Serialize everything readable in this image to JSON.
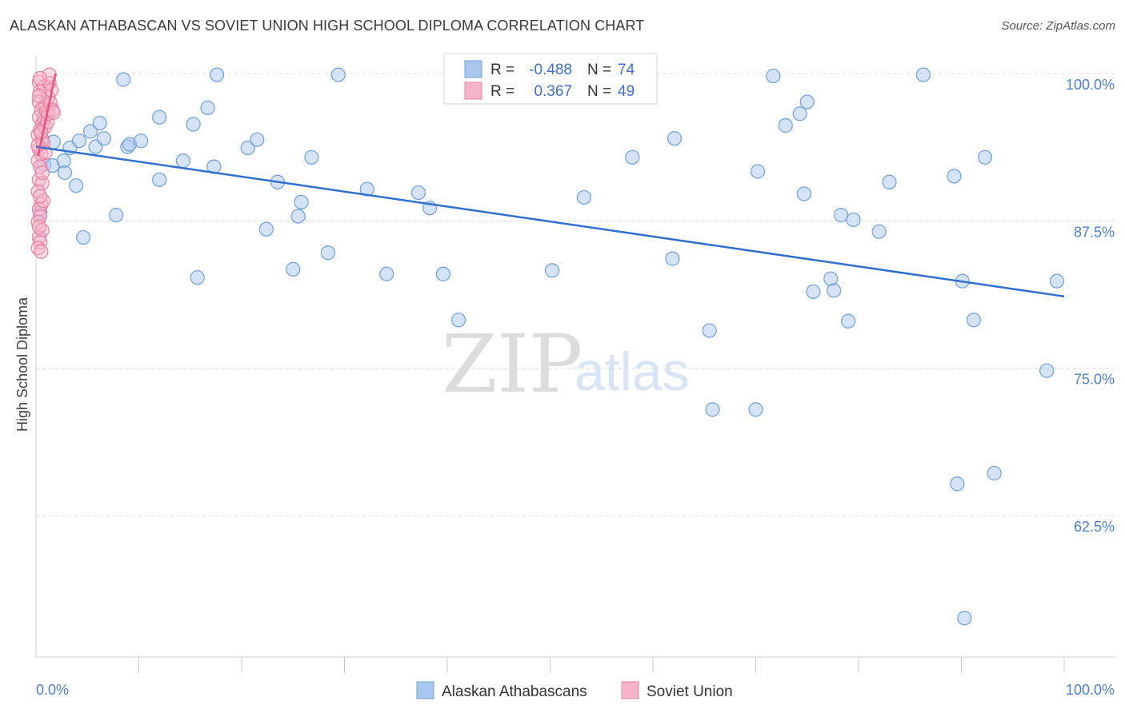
{
  "title": "ALASKAN ATHABASCAN VS SOVIET UNION HIGH SCHOOL DIPLOMA CORRELATION CHART",
  "source": "Source: ZipAtlas.com",
  "watermark": {
    "zip": "ZIP",
    "atlas": "atlas"
  },
  "colors": {
    "blue_fill": "#aac8ee",
    "blue_stroke": "#6d9fdc",
    "blue_line": "#2f6fce",
    "pink_fill": "#f6b4c8",
    "pink_stroke": "#ea7fa0",
    "pink_line": "#e8507e",
    "tick_text": "#4a7fd4",
    "grid": "#d9d9d9"
  },
  "legend": {
    "rows": [
      {
        "r_label": "R =",
        "r_value": "-0.488",
        "n_label": "N =",
        "n_value": "74"
      },
      {
        "r_label": "R =",
        "r_value": "0.367",
        "n_label": "N =",
        "n_value": "49"
      }
    ]
  },
  "chart_data": {
    "type": "scatter",
    "title": "ALASKAN ATHABASCAN VS SOVIET UNION HIGH SCHOOL DIPLOMA CORRELATION CHART",
    "xlabel": "",
    "ylabel": "High School Diploma",
    "xlim": [
      0,
      100
    ],
    "ylim": [
      50.5,
      101.5
    ],
    "x_tick_labels": [
      "0.0%",
      "100.0%"
    ],
    "y_ticks": [
      62.5,
      75.0,
      87.5,
      100.0
    ],
    "y_tick_labels": [
      "62.5%",
      "75.0%",
      "87.5%",
      "100.0%"
    ],
    "grid": true,
    "legend_position": "top-center",
    "series": [
      {
        "name": "Alaskan Athabascans",
        "color": "#aac8ee",
        "trend": {
          "x": [
            0,
            100
          ],
          "y": [
            93.8,
            81.1
          ]
        },
        "points": [
          [
            0.4,
            88.2
          ],
          [
            0.8,
            92.3
          ],
          [
            1.6,
            92.2
          ],
          [
            1.7,
            94.2
          ],
          [
            2.7,
            92.6
          ],
          [
            2.8,
            91.6
          ],
          [
            3.3,
            93.7
          ],
          [
            3.9,
            90.5
          ],
          [
            4.2,
            94.3
          ],
          [
            4.6,
            86.1
          ],
          [
            5.3,
            95.1
          ],
          [
            5.8,
            93.8
          ],
          [
            6.2,
            95.8
          ],
          [
            6.6,
            94.5
          ],
          [
            7.8,
            88.0
          ],
          [
            8.5,
            99.5
          ],
          [
            8.9,
            93.8
          ],
          [
            9.1,
            94.0
          ],
          [
            10.2,
            94.3
          ],
          [
            12.0,
            96.3
          ],
          [
            12.0,
            91.0
          ],
          [
            14.3,
            92.6
          ],
          [
            15.3,
            95.7
          ],
          [
            15.7,
            82.7
          ],
          [
            16.7,
            97.1
          ],
          [
            17.3,
            92.1
          ],
          [
            17.6,
            99.9
          ],
          [
            20.6,
            93.7
          ],
          [
            21.5,
            94.4
          ],
          [
            22.4,
            86.8
          ],
          [
            23.5,
            90.8
          ],
          [
            25.0,
            83.4
          ],
          [
            25.5,
            87.9
          ],
          [
            25.8,
            89.1
          ],
          [
            26.8,
            92.9
          ],
          [
            28.4,
            84.8
          ],
          [
            29.4,
            99.9
          ],
          [
            32.2,
            90.2
          ],
          [
            34.1,
            83.0
          ],
          [
            37.2,
            89.9
          ],
          [
            38.3,
            88.6
          ],
          [
            39.6,
            83.0
          ],
          [
            41.1,
            79.1
          ],
          [
            50.2,
            83.3
          ],
          [
            53.3,
            89.5
          ],
          [
            58.0,
            92.9
          ],
          [
            61.9,
            84.3
          ],
          [
            62.1,
            94.5
          ],
          [
            65.5,
            78.2
          ],
          [
            65.8,
            71.5
          ],
          [
            70.0,
            71.5
          ],
          [
            70.2,
            91.7
          ],
          [
            71.7,
            99.8
          ],
          [
            72.9,
            95.6
          ],
          [
            74.3,
            96.6
          ],
          [
            74.7,
            89.8
          ],
          [
            75.0,
            97.6
          ],
          [
            75.6,
            81.5
          ],
          [
            77.3,
            82.6
          ],
          [
            77.6,
            81.6
          ],
          [
            78.3,
            88.0
          ],
          [
            79.0,
            79.0
          ],
          [
            79.5,
            87.6
          ],
          [
            82.0,
            86.6
          ],
          [
            83.0,
            90.8
          ],
          [
            86.3,
            99.9
          ],
          [
            89.3,
            91.3
          ],
          [
            89.6,
            65.2
          ],
          [
            90.1,
            82.4
          ],
          [
            90.3,
            53.8
          ],
          [
            91.2,
            79.1
          ],
          [
            92.3,
            92.9
          ],
          [
            93.2,
            66.1
          ],
          [
            98.3,
            74.8
          ],
          [
            99.3,
            82.4
          ]
        ]
      },
      {
        "name": "Soviet Union",
        "color": "#f6b4c8",
        "trend": {
          "x": [
            0.2,
            1.9
          ],
          "y": [
            93.0,
            100.0
          ]
        },
        "points": [
          [
            0.3,
            99.3
          ],
          [
            0.4,
            98.5
          ],
          [
            0.3,
            97.6
          ],
          [
            0.5,
            96.9
          ],
          [
            0.3,
            96.3
          ],
          [
            0.6,
            95.7
          ],
          [
            0.4,
            95.2
          ],
          [
            0.2,
            94.8
          ],
          [
            0.6,
            94.4
          ],
          [
            0.3,
            93.6
          ],
          [
            0.5,
            93.2
          ],
          [
            0.2,
            92.6
          ],
          [
            0.4,
            92.1
          ],
          [
            0.3,
            91.0
          ],
          [
            0.6,
            90.7
          ],
          [
            0.2,
            90.0
          ],
          [
            0.5,
            88.9
          ],
          [
            0.3,
            88.5
          ],
          [
            0.4,
            87.9
          ],
          [
            0.2,
            87.4
          ],
          [
            0.6,
            86.7
          ],
          [
            0.3,
            86.1
          ],
          [
            0.4,
            85.7
          ],
          [
            0.2,
            85.2
          ],
          [
            0.5,
            84.9
          ],
          [
            0.8,
            98.9
          ],
          [
            0.9,
            97.3
          ],
          [
            0.8,
            96.2
          ],
          [
            0.9,
            95.5
          ],
          [
            0.7,
            94.1
          ],
          [
            0.9,
            93.3
          ],
          [
            0.7,
            89.2
          ],
          [
            1.0,
            96.8
          ],
          [
            1.2,
            98.0
          ],
          [
            1.1,
            95.9
          ],
          [
            1.2,
            96.6
          ],
          [
            1.3,
            99.2
          ],
          [
            1.3,
            99.9
          ],
          [
            1.4,
            97.5
          ],
          [
            1.5,
            98.6
          ],
          [
            1.6,
            96.9
          ],
          [
            1.7,
            96.7
          ],
          [
            0.4,
            99.6
          ],
          [
            0.3,
            98.1
          ],
          [
            0.5,
            95.0
          ],
          [
            0.2,
            93.9
          ],
          [
            0.6,
            91.6
          ],
          [
            0.4,
            89.6
          ],
          [
            0.3,
            87.0
          ]
        ]
      }
    ]
  },
  "bottom_legend": [
    "Alaskan Athabascans",
    "Soviet Union"
  ]
}
